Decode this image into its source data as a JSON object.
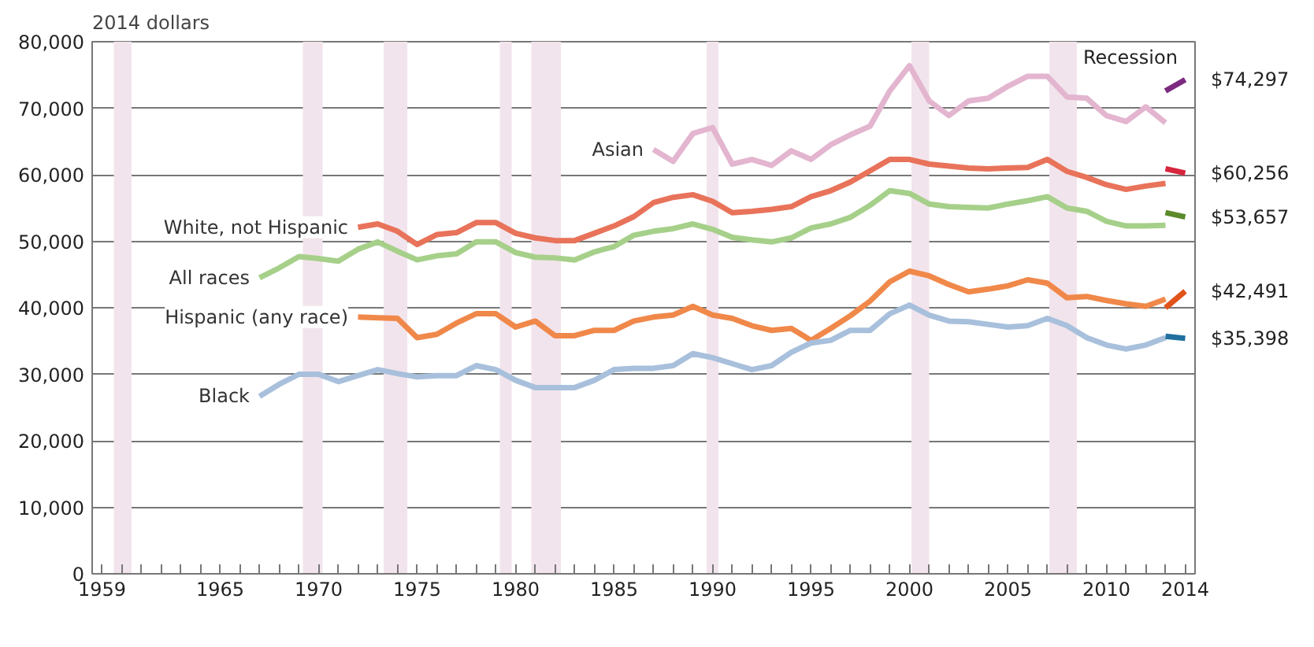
{
  "chart_data": {
    "type": "line",
    "ylabel": "2014 dollars",
    "xlim": [
      1958.5,
      2014.5
    ],
    "ylim": [
      0,
      80000
    ],
    "xticks": [
      1959,
      {
        "value": 1960,
        "label": null
      },
      {
        "value": 1961,
        "label": null
      },
      {
        "value": 1962,
        "label": null
      },
      {
        "value": 1963,
        "label": null
      },
      {
        "value": 1964,
        "label": null
      },
      1965,
      {
        "value": 1966,
        "label": null
      },
      {
        "value": 1967,
        "label": null
      },
      {
        "value": 1968,
        "label": null
      },
      {
        "value": 1969,
        "label": null
      },
      1970,
      {
        "value": 1971,
        "label": null
      },
      {
        "value": 1972,
        "label": null
      },
      {
        "value": 1973,
        "label": null
      },
      {
        "value": 1974,
        "label": null
      },
      1975,
      {
        "value": 1976,
        "label": null
      },
      {
        "value": 1977,
        "label": null
      },
      {
        "value": 1978,
        "label": null
      },
      {
        "value": 1979,
        "label": null
      },
      1980,
      {
        "value": 1981,
        "label": null
      },
      {
        "value": 1982,
        "label": null
      },
      {
        "value": 1983,
        "label": null
      },
      {
        "value": 1984,
        "label": null
      },
      1985,
      {
        "value": 1986,
        "label": null
      },
      {
        "value": 1987,
        "label": null
      },
      {
        "value": 1988,
        "label": null
      },
      {
        "value": 1989,
        "label": null
      },
      1990,
      {
        "value": 1991,
        "label": null
      },
      {
        "value": 1992,
        "label": null
      },
      {
        "value": 1993,
        "label": null
      },
      {
        "value": 1994,
        "label": null
      },
      1995,
      {
        "value": 1996,
        "label": null
      },
      {
        "value": 1997,
        "label": null
      },
      {
        "value": 1998,
        "label": null
      },
      {
        "value": 1999,
        "label": null
      },
      2000,
      {
        "value": 2001,
        "label": null
      },
      {
        "value": 2002,
        "label": null
      },
      {
        "value": 2003,
        "label": null
      },
      {
        "value": 2004,
        "label": null
      },
      2005,
      {
        "value": 2006,
        "label": null
      },
      {
        "value": 2007,
        "label": null
      },
      {
        "value": 2008,
        "label": null
      },
      {
        "value": 2009,
        "label": null
      },
      2010,
      {
        "value": 2011,
        "label": null
      },
      {
        "value": 2012,
        "label": null
      },
      {
        "value": 2013,
        "label": null
      },
      2014
    ],
    "yticks": [
      0,
      {
        "value": 10000,
        "label": "10,000"
      },
      {
        "value": 20000,
        "label": "20,000"
      },
      {
        "value": 30000,
        "label": "30,000"
      },
      {
        "value": 40000,
        "label": "40,000"
      },
      {
        "value": 50000,
        "label": "50,000"
      },
      {
        "value": 60000,
        "label": "60,000"
      },
      {
        "value": 70000,
        "label": "70,000"
      },
      {
        "value": 80000,
        "label": "80,000"
      }
    ],
    "grid": "y",
    "line_style": "solid",
    "bands": [
      {
        "axis": "x",
        "from": 1959.6,
        "to": 1960.5,
        "color": "#f2e4ec"
      },
      {
        "axis": "x",
        "from": 1969.2,
        "to": 1970.2,
        "color": "#f2e4ec"
      },
      {
        "axis": "x",
        "from": 1973.3,
        "to": 1974.5,
        "color": "#f2e4ec"
      },
      {
        "axis": "x",
        "from": 1979.2,
        "to": 1979.8,
        "color": "#f2e4ec"
      },
      {
        "axis": "x",
        "from": 1980.8,
        "to": 1982.3,
        "color": "#f2e4ec"
      },
      {
        "axis": "x",
        "from": 1989.7,
        "to": 1990.3,
        "color": "#f2e4ec"
      },
      {
        "axis": "x",
        "from": 2000.1,
        "to": 2001.0,
        "color": "#f2e4ec"
      },
      {
        "axis": "x",
        "from": 2007.1,
        "to": 2008.5,
        "label": "Recession",
        "color": "#f2e4ec"
      }
    ],
    "series": [
      {
        "name": "Asian",
        "color": "#e3b5cf",
        "x": [
          1987,
          1988,
          1989,
          1990,
          1991,
          1992,
          1993,
          1994,
          1995,
          1996,
          1997,
          1998,
          1999,
          2000,
          2001,
          2002,
          2003,
          2004,
          2005,
          2006,
          2007,
          2008,
          2009,
          2010,
          2011,
          2012,
          2013
        ],
        "values": [
          63800,
          62000,
          66200,
          67100,
          61600,
          62300,
          61400,
          63600,
          62300,
          64500,
          66000,
          67300,
          72600,
          76400,
          71100,
          68900,
          71100,
          71500,
          73300,
          74800,
          74800,
          71700,
          71500,
          68900,
          68000,
          70200,
          67800
        ]
      },
      {
        "name": "White, not Hispanic",
        "color": "#e8735a",
        "x": [
          1972,
          1973,
          1974,
          1975,
          1976,
          1977,
          1978,
          1979,
          1980,
          1981,
          1982,
          1983,
          1984,
          1985,
          1986,
          1987,
          1988,
          1989,
          1990,
          1991,
          1992,
          1993,
          1994,
          1995,
          1996,
          1997,
          1998,
          1999,
          2000,
          2001,
          2002,
          2003,
          2004,
          2005,
          2006,
          2007,
          2008,
          2009,
          2010,
          2011,
          2012,
          2013
        ],
        "values": [
          52100,
          52600,
          51500,
          49500,
          51000,
          51300,
          52800,
          52800,
          51200,
          50500,
          50100,
          50100,
          51200,
          52300,
          53700,
          55800,
          56600,
          57000,
          56000,
          54300,
          54500,
          54800,
          55200,
          56700,
          57600,
          58900,
          60600,
          62300,
          62300,
          61600,
          61300,
          61000,
          60900,
          61000,
          61100,
          62300,
          60500,
          59600,
          58500,
          57800,
          58300,
          58700
        ]
      },
      {
        "name": "All races",
        "color": "#a6d08a",
        "x": [
          1967,
          1968,
          1969,
          1970,
          1971,
          1972,
          1973,
          1974,
          1975,
          1976,
          1977,
          1978,
          1979,
          1980,
          1981,
          1982,
          1983,
          1984,
          1985,
          1986,
          1987,
          1988,
          1989,
          1990,
          1991,
          1992,
          1993,
          1994,
          1995,
          1996,
          1997,
          1998,
          1999,
          2000,
          2001,
          2002,
          2003,
          2004,
          2005,
          2006,
          2007,
          2008,
          2009,
          2010,
          2011,
          2012,
          2013
        ],
        "values": [
          44500,
          46000,
          47700,
          47400,
          47000,
          48800,
          49900,
          48500,
          47200,
          47800,
          48100,
          49900,
          49900,
          48300,
          47600,
          47500,
          47200,
          48400,
          49200,
          50900,
          51500,
          51900,
          52600,
          51800,
          50600,
          50200,
          49900,
          50500,
          52000,
          52600,
          53600,
          55400,
          57600,
          57200,
          55600,
          55200,
          55100,
          55000,
          55600,
          56100,
          56700,
          55000,
          54500,
          53000,
          52300,
          52300,
          52400
        ]
      },
      {
        "name": "Hispanic (any race)",
        "color": "#f0884a",
        "x": [
          1972,
          1973,
          1974,
          1975,
          1976,
          1977,
          1978,
          1979,
          1980,
          1981,
          1982,
          1983,
          1984,
          1985,
          1986,
          1987,
          1988,
          1989,
          1990,
          1991,
          1992,
          1993,
          1994,
          1995,
          1996,
          1997,
          1998,
          1999,
          2000,
          2001,
          2002,
          2003,
          2004,
          2005,
          2006,
          2007,
          2008,
          2009,
          2010,
          2011,
          2012,
          2013
        ],
        "values": [
          38600,
          38500,
          38400,
          35500,
          36000,
          37700,
          39100,
          39100,
          37100,
          38000,
          35800,
          35800,
          36600,
          36600,
          38000,
          38600,
          38900,
          40200,
          38900,
          38400,
          37300,
          36600,
          36900,
          35100,
          36900,
          38800,
          41000,
          43900,
          45500,
          44800,
          43500,
          42400,
          42800,
          43300,
          44200,
          43700,
          41500,
          41700,
          41100,
          40600,
          40200,
          41300
        ]
      },
      {
        "name": "Black",
        "color": "#a8c0dc",
        "x": [
          1967,
          1968,
          1969,
          1970,
          1971,
          1972,
          1973,
          1974,
          1975,
          1976,
          1977,
          1978,
          1979,
          1980,
          1981,
          1982,
          1983,
          1984,
          1985,
          1986,
          1987,
          1988,
          1989,
          1990,
          1991,
          1992,
          1993,
          1994,
          1995,
          1996,
          1997,
          1998,
          1999,
          2000,
          2001,
          2002,
          2003,
          2004,
          2005,
          2006,
          2007,
          2008,
          2009,
          2010,
          2011,
          2012,
          2013
        ],
        "values": [
          26700,
          28500,
          30000,
          30000,
          28900,
          29800,
          30700,
          30100,
          29600,
          29800,
          29800,
          31300,
          30700,
          29100,
          28000,
          28000,
          28000,
          29100,
          30700,
          30900,
          30900,
          31300,
          33100,
          32500,
          31600,
          30700,
          31300,
          33300,
          34700,
          35100,
          36600,
          36600,
          39100,
          40400,
          38900,
          38000,
          37900,
          37500,
          37100,
          37300,
          38400,
          37300,
          35500,
          34400,
          33800,
          34400,
          35500
        ]
      },
      {
        "color": "#7b2a7f",
        "x": [
          2013,
          2014
        ],
        "values": [
          72600,
          74297
        ],
        "value_labels": [
          null,
          "$74,297"
        ]
      },
      {
        "color": "#d7263d",
        "x": [
          2013,
          2014
        ],
        "values": [
          60900,
          60256
        ],
        "value_labels": [
          null,
          "$60,256"
        ]
      },
      {
        "color": "#5b8a2b",
        "x": [
          2013,
          2014
        ],
        "values": [
          54300,
          53657
        ],
        "value_labels": [
          null,
          "$53,657"
        ]
      },
      {
        "color": "#e0531b",
        "x": [
          2013,
          2014
        ],
        "values": [
          40000,
          42491
        ],
        "value_labels": [
          null,
          "$42,491"
        ]
      },
      {
        "color": "#1f6f9f",
        "x": [
          2013,
          2014
        ],
        "values": [
          35700,
          35398
        ],
        "value_labels": [
          null,
          "$35,398"
        ]
      }
    ]
  }
}
